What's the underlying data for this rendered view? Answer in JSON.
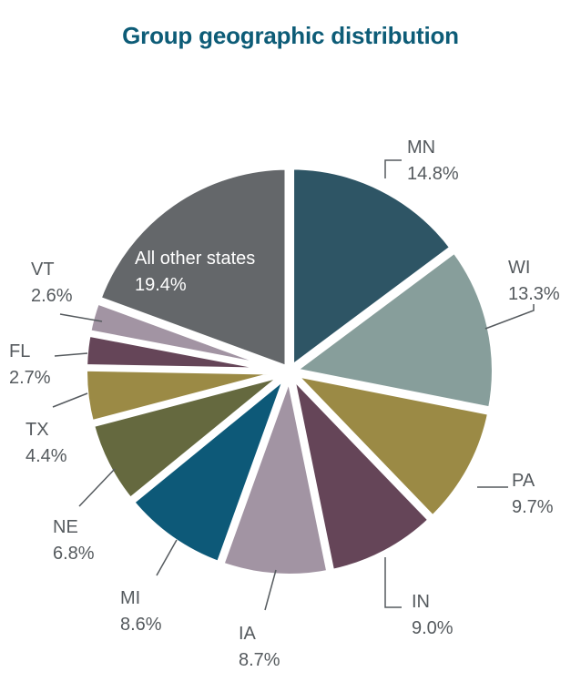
{
  "chart_data": {
    "type": "pie",
    "title": "Group geographic distribution",
    "slices": [
      {
        "label": "MN",
        "value": 14.8,
        "value_label": "14.8%",
        "color": "#2e5565"
      },
      {
        "label": "WI",
        "value": 13.3,
        "value_label": "13.3%",
        "color": "#879e9b"
      },
      {
        "label": "PA",
        "value": 9.7,
        "value_label": "9.7%",
        "color": "#9b8a45"
      },
      {
        "label": "IN",
        "value": 9.0,
        "value_label": "9.0%",
        "color": "#654558"
      },
      {
        "label": "IA",
        "value": 8.7,
        "value_label": "8.7%",
        "color": "#a294a3"
      },
      {
        "label": "MI",
        "value": 8.6,
        "value_label": "8.6%",
        "color": "#0d5978"
      },
      {
        "label": "NE",
        "value": 6.8,
        "value_label": "6.8%",
        "color": "#65693f"
      },
      {
        "label": "TX",
        "value": 4.4,
        "value_label": "4.4%",
        "color": "#9b8a45"
      },
      {
        "label": "FL",
        "value": 2.7,
        "value_label": "2.7%",
        "color": "#654558"
      },
      {
        "label": "VT",
        "value": 2.6,
        "value_label": "2.6%",
        "color": "#a294a3"
      },
      {
        "label": "All other states",
        "value": 19.4,
        "value_label": "19.4%",
        "color": "#64676a"
      }
    ]
  }
}
